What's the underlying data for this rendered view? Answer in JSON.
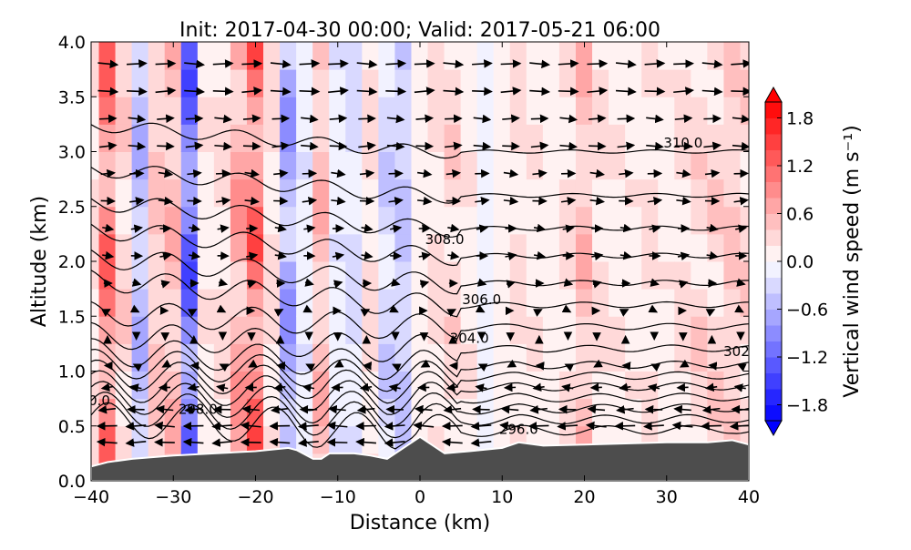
{
  "chart_data": {
    "type": "heatmap",
    "title": "Init: 2017-04-30 00:00; Valid: 2017-05-21 06:00",
    "xlabel": "Distance (km)",
    "ylabel": "Altitude (km)",
    "xlim": [
      -40,
      40
    ],
    "ylim": [
      0.0,
      4.0
    ],
    "xticks": [
      "−40",
      "−30",
      "−20",
      "−10",
      "0",
      "10",
      "20",
      "30",
      "40"
    ],
    "yticks": [
      "0.0",
      "0.5",
      "1.0",
      "1.5",
      "2.0",
      "2.5",
      "3.0",
      "3.5",
      "4.0"
    ],
    "colorbar": {
      "label": "Vertical wind speed (m s⁻¹)",
      "min": -2.0,
      "max": 2.0,
      "step": 0.2,
      "extend": "both",
      "ticks": [
        "−1.8",
        "−1.2",
        "−0.6",
        "0.0",
        "0.6",
        "1.2",
        "1.8"
      ],
      "neg_color": "#0000ff",
      "pos_color": "#ff0000"
    },
    "vertical_wind_columns": {
      "x": [
        -40,
        -38,
        -36,
        -34,
        -32,
        -30,
        -28,
        -26,
        -24,
        -22,
        -20,
        -18,
        -16,
        -14,
        -12,
        -10,
        -8,
        -6,
        -4,
        -2,
        0,
        2,
        4,
        6,
        8,
        10,
        12,
        14,
        16,
        18,
        20,
        22,
        24,
        26,
        28,
        30,
        32,
        34,
        36,
        38,
        40
      ],
      "w": [
        0.3,
        1.2,
        0.4,
        -0.6,
        0.5,
        0.6,
        -1.4,
        0.2,
        0.3,
        0.8,
        1.3,
        0.3,
        -0.8,
        -0.2,
        0.6,
        -0.2,
        -0.3,
        0.3,
        -0.4,
        -0.5,
        0.1,
        0.3,
        0.4,
        0.2,
        -0.1,
        0.1,
        0.3,
        0.2,
        0.1,
        0.3,
        0.6,
        0.3,
        0.2,
        0.2,
        0.3,
        0.2,
        0.3,
        0.4,
        0.4,
        0.5,
        0.4
      ]
    },
    "terrain": {
      "x": [
        -40,
        -38,
        -35,
        -30,
        -25,
        -20,
        -16,
        -15,
        -13,
        -12,
        -11,
        -8,
        -6,
        -4,
        -2,
        0,
        1,
        3,
        6,
        10,
        12,
        15,
        20,
        30,
        35,
        38,
        40
      ],
      "height_km": [
        0.13,
        0.17,
        0.2,
        0.23,
        0.25,
        0.27,
        0.3,
        0.28,
        0.2,
        0.2,
        0.25,
        0.25,
        0.23,
        0.2,
        0.3,
        0.4,
        0.35,
        0.25,
        0.27,
        0.3,
        0.35,
        0.32,
        0.33,
        0.35,
        0.35,
        0.37,
        0.33
      ],
      "color": "#4d4d4d"
    },
    "potential_temperature_contours": {
      "levels": [
        296,
        297,
        298,
        299,
        300,
        301,
        302,
        303,
        304,
        305,
        306,
        307,
        308,
        309,
        310
      ],
      "right_altitude_km": [
        0.45,
        0.55,
        0.65,
        0.75,
        0.85,
        0.95,
        1.05,
        1.2,
        1.4,
        1.6,
        1.8,
        2.05,
        2.3,
        2.6,
        3.0
      ],
      "labels": [
        {
          "text": "296.0",
          "x": 12,
          "z": 0.47
        },
        {
          "text": "298.0",
          "x": -27,
          "z": 0.65
        },
        {
          "text": "0.0",
          "x": -39,
          "z": 0.73
        },
        {
          "text": "304.0",
          "x": 6,
          "z": 1.3
        },
        {
          "text": "306.0",
          "x": 7.5,
          "z": 1.65
        },
        {
          "text": "308.0",
          "x": 3,
          "z": 2.2
        },
        {
          "text": "310.0",
          "x": 32,
          "z": 3.08
        },
        {
          "text": "302",
          "x": 38.5,
          "z": 1.18
        }
      ]
    },
    "wind_arrows": {
      "x_spacing_km": 3.5,
      "altitudes_km": [
        0.35,
        0.5,
        0.65,
        0.85,
        1.05,
        1.3,
        1.55,
        1.8,
        2.05,
        2.3,
        2.55,
        2.8,
        3.05,
        3.3,
        3.55,
        3.8
      ],
      "u_ms": [
        -6,
        -6,
        -5,
        -3,
        -1,
        0,
        1,
        2,
        3,
        3,
        4,
        4,
        5,
        5,
        6,
        6
      ]
    }
  }
}
